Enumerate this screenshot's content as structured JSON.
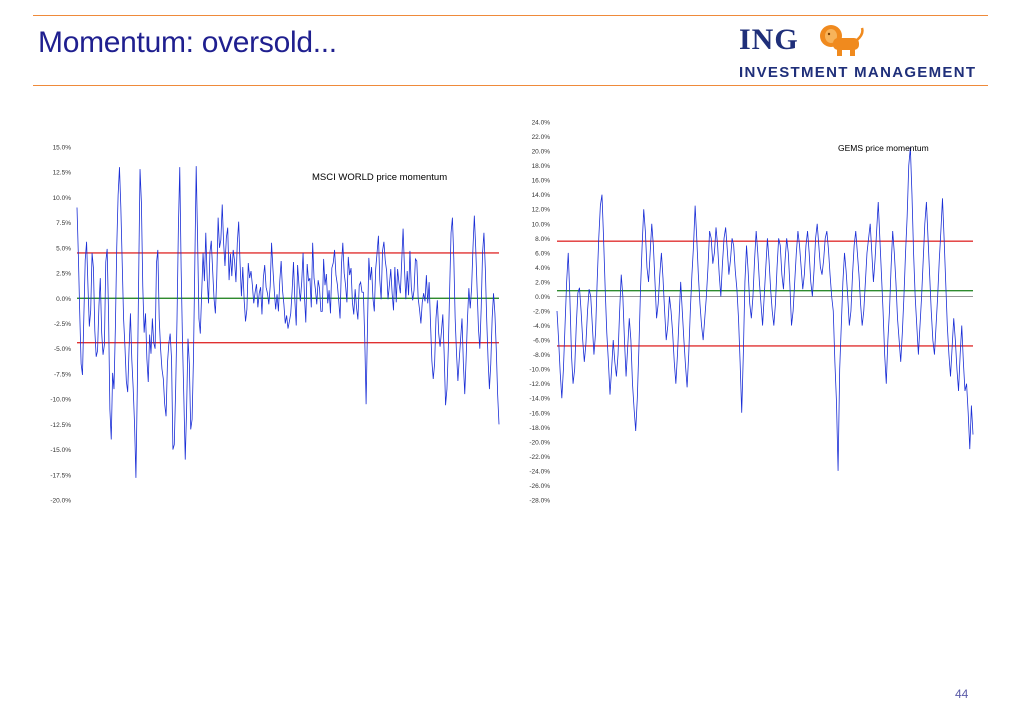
{
  "slide": {
    "title": "Momentum: oversold...",
    "page_number": "44",
    "logo_word": "ING",
    "logo_sub": "INVESTMENT MANAGEMENT"
  },
  "colors": {
    "rule": "#ef8a3a",
    "title": "#1f1f8f",
    "series": "#1a2ed6",
    "upper_threshold": "#e03030",
    "lower_threshold": "#e03030",
    "zero_line": "#2e8b2e"
  },
  "chart_data": [
    {
      "type": "line",
      "title": "MSCI WORLD price momentum",
      "ylim": [
        -20,
        15
      ],
      "y_ticks": [
        "15.0%",
        "12.5%",
        "10.0%",
        "7.5%",
        "5.0%",
        "2.5%",
        "0.0%",
        "-2.5%",
        "-5.0%",
        "-7.5%",
        "-10.0%",
        "-12.5%",
        "-15.0%",
        "-17.5%",
        "-20.0%"
      ],
      "y_tick_values": [
        15,
        12.5,
        10,
        7.5,
        5,
        2.5,
        0,
        -2.5,
        -5,
        -7.5,
        -10,
        -12.5,
        -15,
        -17.5,
        -20
      ],
      "reference_lines": [
        4.5,
        0.0,
        -4.4
      ],
      "series_values": [
        9.0,
        4.2,
        -1.5,
        -6.5,
        -7.6,
        -1.8,
        3.8,
        5.6,
        1.2,
        -2.8,
        -1.2,
        4.5,
        3.0,
        -3.2,
        -5.8,
        -5.2,
        -0.8,
        2.0,
        -3.4,
        -5.6,
        -4.6,
        3.6,
        4.9,
        -1.3,
        -11.0,
        -14.0,
        -7.4,
        -9.0,
        -3.0,
        5.0,
        10.2,
        13.0,
        9.0,
        3.5,
        -2.0,
        -4.8,
        -8.2,
        -9.3,
        -5.0,
        -1.5,
        -6.1,
        -8.9,
        -12.5,
        -17.8,
        -9.0,
        2.0,
        12.8,
        9.5,
        1.2,
        -3.4,
        -1.5,
        -6.0,
        -8.3,
        -3.6,
        -5.5,
        -2.0,
        -4.4,
        -5.0,
        3.5,
        4.8,
        -2.0,
        -5.0,
        -7.0,
        -8.0,
        -10.5,
        -11.7,
        -6.5,
        -4.5,
        -3.5,
        -6.0,
        -15.0,
        -14.5,
        -9.0,
        -2.0,
        7.0,
        13.0,
        3.0,
        -4.3,
        -10.0,
        -16.0,
        -11.0,
        -4.0,
        -6.5,
        -13.0,
        -12.0,
        -6.0,
        3.5,
        13.1,
        6.0,
        -2.0,
        -3.5,
        0.5,
        4.5,
        1.7,
        6.5,
        2.0,
        -0.5,
        4.5,
        5.7,
        2.8,
        0.0,
        -1.5,
        2.0,
        8.0,
        5.0,
        5.8,
        9.3,
        5.5,
        3.2,
        6.0,
        7.0,
        1.8,
        4.4,
        2.2,
        4.8,
        3.7,
        1.6,
        5.5,
        7.6,
        3.5,
        0.2,
        3.1,
        -0.2,
        -2.3,
        -1.1,
        3.5,
        2.0,
        2.7,
        1.3,
        -0.5,
        0.6,
        1.4,
        -0.9,
        0.5,
        1.1,
        -1.6,
        2.0,
        3.3,
        1.1,
        0.5,
        -0.6,
        1.2,
        5.5,
        2.9,
        0.7,
        -1.1,
        0.4,
        -1.3,
        1.7,
        3.7,
        0.8,
        -0.6,
        -2.5,
        -1.7,
        -3.0,
        -2.3,
        -1.5,
        0.7,
        3.6,
        -0.2,
        -2.7,
        3.3,
        1.3,
        -0.3,
        1.6,
        4.5,
        0.2,
        -2.4,
        3.4,
        1.7,
        2.0,
        -0.9,
        5.5,
        2.0,
        0.9,
        -0.6,
        1.8,
        1.0,
        -1.3,
        -1.3,
        3.9,
        1.3,
        2.4,
        -0.5,
        0.8,
        -1.5,
        3.0,
        3.5,
        4.8,
        2.3,
        1.4,
        -0.2,
        -2.0,
        3.3,
        5.5,
        2.5,
        1.3,
        -0.4,
        4.1,
        2.3,
        3.0,
        -0.4,
        -1.6,
        0.9,
        -0.9,
        -2.1,
        1.3,
        1.6,
        0.6,
        0.6,
        -3.9,
        -10.5,
        -2.9,
        4.0,
        1.8,
        3.1,
        0.0,
        -1.3,
        2.9,
        4.5,
        6.2,
        1.8,
        -0.1,
        4.7,
        5.6,
        3.7,
        2.7,
        -0.1,
        1.3,
        2.9,
        0.5,
        -1.2,
        3.1,
        -0.4,
        2.9,
        1.5,
        0.5,
        3.7,
        6.9,
        3.0,
        -0.1,
        2.7,
        0.3,
        4.7,
        1.1,
        -0.2,
        0.8,
        3.9,
        3.7,
        0.0,
        -1.1,
        -2.5,
        -0.4,
        0.5,
        -0.3,
        2.3,
        -0.5,
        1.6,
        -2.4,
        -6.2,
        -8.0,
        -6.5,
        -2.0,
        -0.2,
        -3.5,
        -4.8,
        -3.3,
        -1.6,
        -5.6,
        -10.6,
        -9.0,
        -5.0,
        1.0,
        6.5,
        8.0,
        4.0,
        -2.0,
        -5.5,
        -8.2,
        -6.0,
        -4.0,
        -2.0,
        -6.5,
        -9.5,
        -6.0,
        -2.0,
        1.0,
        -1.0,
        1.0,
        5.0,
        8.2,
        5.0,
        1.0,
        -3.0,
        -5.0,
        -1.0,
        4.5,
        6.5,
        3.0,
        -2.0,
        -6.0,
        -9.0,
        -6.5,
        -2.0,
        0.5,
        -1.5,
        -5.0,
        -9.5,
        -12.5
      ]
    },
    {
      "type": "line",
      "title": "GEMS price momentum",
      "ylim": [
        -28,
        24
      ],
      "y_ticks": [
        "24.0%",
        "22.0%",
        "20.0%",
        "18.0%",
        "16.0%",
        "14.0%",
        "12.0%",
        "10.0%",
        "8.0%",
        "6.0%",
        "4.0%",
        "2.0%",
        "0.0%",
        "-2.0%",
        "-4.0%",
        "-6.0%",
        "-8.0%",
        "-10.0%",
        "-12.0%",
        "-14.0%",
        "-16.0%",
        "-18.0%",
        "-20.0%",
        "-22.0%",
        "-24.0%",
        "-26.0%",
        "-28.0%"
      ],
      "y_tick_values": [
        24,
        22,
        20,
        18,
        16,
        14,
        12,
        10,
        8,
        6,
        4,
        2,
        0,
        -2,
        -4,
        -6,
        -8,
        -10,
        -12,
        -14,
        -16,
        -18,
        -20,
        -22,
        -24,
        -26,
        -28
      ],
      "reference_lines": [
        7.6,
        0.8,
        -6.8
      ],
      "series_values": [
        -2.0,
        -6.0,
        -10.5,
        -14.0,
        -10.0,
        -4.0,
        2.0,
        6.0,
        0.0,
        -8.0,
        -12.0,
        -10.0,
        -4.0,
        0.5,
        1.2,
        -2.0,
        -6.0,
        -9.0,
        -6.5,
        -2.0,
        1.0,
        0.0,
        -4.0,
        -8.0,
        -5.0,
        2.0,
        8.0,
        12.5,
        14.0,
        8.0,
        1.0,
        -5.0,
        -9.0,
        -13.5,
        -10.0,
        -6.0,
        -9.0,
        -11.0,
        -8.0,
        -2.0,
        3.0,
        0.0,
        -6.0,
        -11.0,
        -7.0,
        -3.0,
        -6.0,
        -12.0,
        -15.5,
        -18.5,
        -14.0,
        -7.0,
        1.0,
        7.0,
        12.0,
        9.0,
        4.0,
        2.0,
        6.0,
        10.0,
        7.0,
        2.0,
        -3.0,
        -1.0,
        3.0,
        6.0,
        2.5,
        -2.0,
        -6.0,
        -4.0,
        0.0,
        -2.0,
        -5.0,
        -9.0,
        -12.0,
        -8.0,
        -3.0,
        2.0,
        -2.0,
        -6.0,
        -9.5,
        -12.5,
        -8.0,
        -2.0,
        3.0,
        7.0,
        12.5,
        8.0,
        3.0,
        -1.0,
        -4.0,
        -6.0,
        -3.0,
        0.0,
        4.0,
        9.0,
        8.0,
        4.5,
        6.0,
        9.5,
        7.0,
        3.0,
        0.0,
        4.5,
        8.0,
        9.5,
        6.5,
        3.0,
        5.0,
        8.0,
        7.0,
        3.5,
        1.0,
        -3.0,
        -9.0,
        -16.0,
        -8.0,
        2.0,
        7.0,
        3.5,
        -1.0,
        -3.0,
        0.0,
        5.0,
        9.0,
        6.0,
        2.0,
        -1.0,
        -4.0,
        0.0,
        4.0,
        8.0,
        5.0,
        1.0,
        -2.0,
        -4.0,
        -1.0,
        4.0,
        8.0,
        7.0,
        3.0,
        1.0,
        5.0,
        8.0,
        6.0,
        1.5,
        -4.0,
        -2.0,
        2.0,
        6.0,
        9.0,
        7.0,
        4.0,
        1.0,
        3.0,
        7.0,
        9.0,
        6.0,
        2.0,
        0.0,
        3.5,
        8.0,
        10.0,
        7.0,
        4.0,
        3.0,
        5.0,
        8.0,
        9.0,
        6.5,
        3.0,
        0.0,
        -2.0,
        -9.0,
        -14.5,
        -24.0,
        -10.0,
        -4.0,
        2.0,
        6.0,
        3.5,
        0.0,
        -4.0,
        -2.0,
        3.0,
        7.0,
        9.0,
        6.0,
        3.0,
        -1.0,
        -4.0,
        -2.0,
        2.0,
        6.0,
        8.0,
        10.0,
        6.0,
        2.0,
        5.0,
        9.0,
        13.0,
        8.0,
        3.0,
        -2.0,
        -8.0,
        -12.0,
        -6.0,
        -2.0,
        4.0,
        9.0,
        6.0,
        2.0,
        -3.0,
        -6.0,
        -9.0,
        -5.0,
        0.0,
        6.0,
        11.0,
        18.0,
        20.5,
        14.0,
        6.0,
        0.0,
        -4.0,
        -8.0,
        -4.0,
        0.0,
        5.0,
        10.0,
        13.0,
        8.0,
        3.0,
        -2.0,
        -6.0,
        -8.0,
        -4.0,
        0.0,
        5.0,
        9.0,
        13.5,
        8.0,
        2.0,
        -4.0,
        -8.0,
        -11.0,
        -7.0,
        -3.0,
        -6.0,
        -10.0,
        -13.0,
        -8.0,
        -4.0,
        -9.0,
        -13.0,
        -12.0,
        -16.0,
        -21.0,
        -15.0,
        -19.0
      ]
    }
  ]
}
